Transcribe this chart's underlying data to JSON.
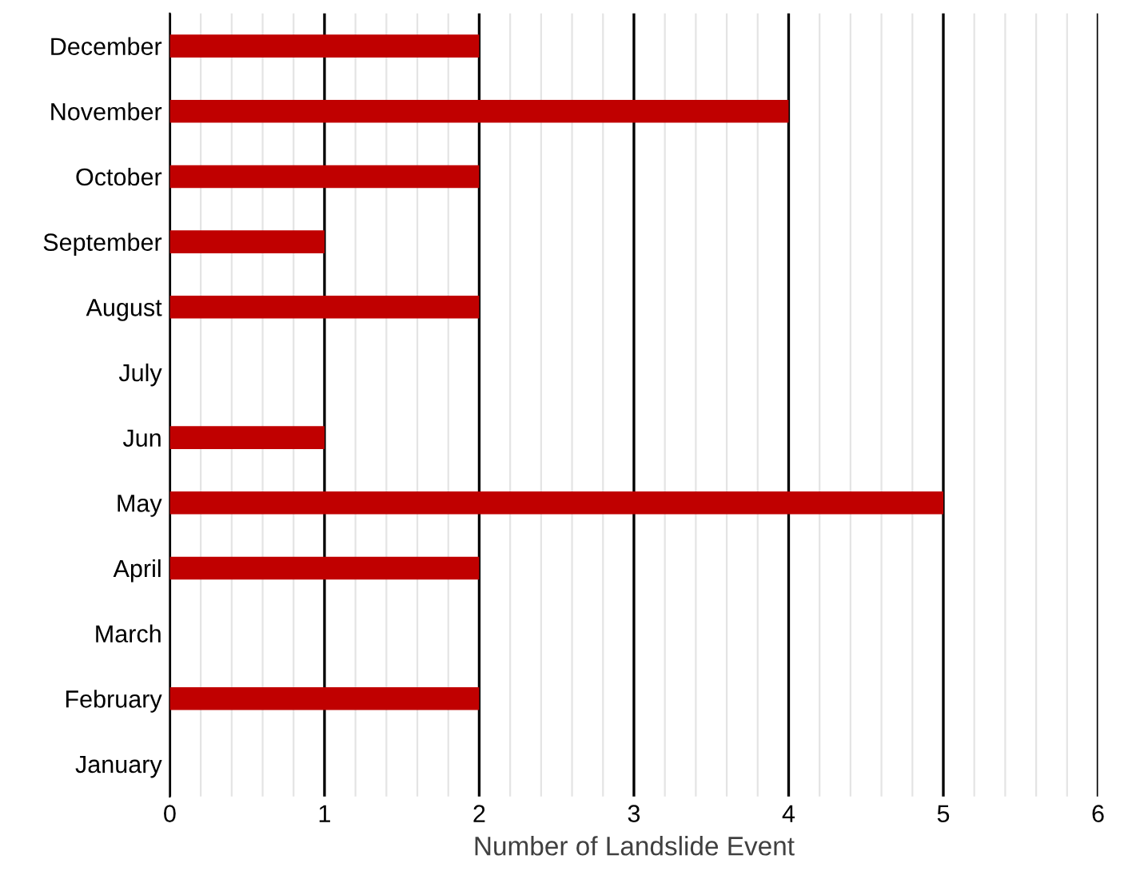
{
  "chart_data": {
    "type": "bar",
    "orientation": "horizontal",
    "xlabel": "Number of Landslide Event",
    "categories": [
      "December",
      "November",
      "October",
      "September",
      "August",
      "July",
      "Jun",
      "May",
      "April",
      "March",
      "February",
      "January"
    ],
    "values": [
      2,
      4,
      2,
      1,
      2,
      0,
      1,
      5,
      2,
      0,
      2,
      0
    ],
    "color": "#c00000",
    "xlim": [
      0,
      6
    ],
    "xticks": [
      0,
      1,
      2,
      3,
      4,
      5,
      6
    ],
    "grid": "x",
    "legend": false
  }
}
